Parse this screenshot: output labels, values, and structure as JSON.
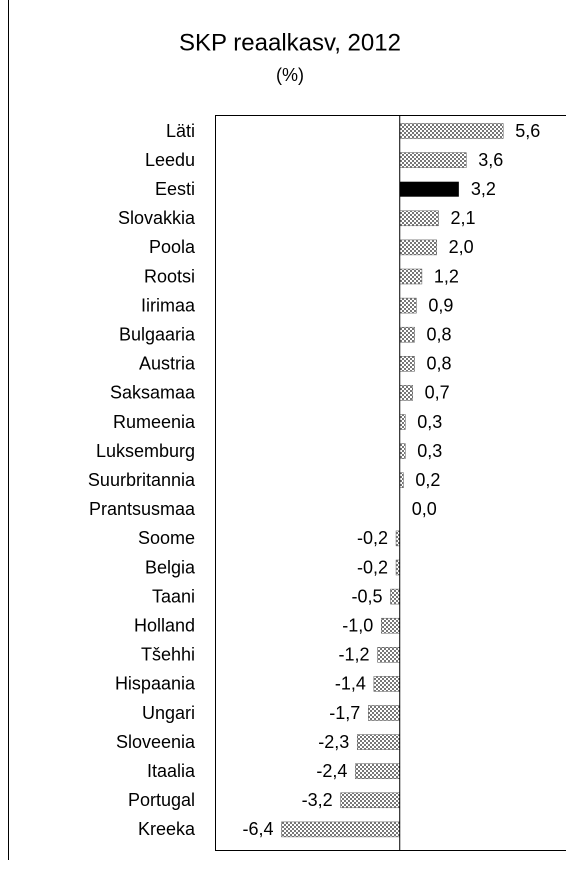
{
  "chart_data": {
    "type": "hbar",
    "title": "SKP reaalkasv, 2012",
    "subtitle": "(%)",
    "categories": [
      "Läti",
      "Leedu",
      "Eesti",
      "Slovakkia",
      "Poola",
      "Rootsi",
      "Iirimaa",
      "Bulgaaria",
      "Austria",
      "Saksamaa",
      "Rumeenia",
      "Luksemburg",
      "Suurbritannia",
      "Prantsusmaa",
      "Soome",
      "Belgia",
      "Taani",
      "Holland",
      "Tšehhi",
      "Hispaania",
      "Ungari",
      "Sloveenia",
      "Itaalia",
      "Portugal",
      "Kreeka"
    ],
    "values": [
      5.6,
      3.6,
      3.2,
      2.1,
      2.0,
      1.2,
      0.9,
      0.8,
      0.8,
      0.7,
      0.3,
      0.3,
      0.2,
      0.0,
      -0.2,
      -0.2,
      -0.5,
      -1.0,
      -1.2,
      -1.4,
      -1.7,
      -2.3,
      -2.4,
      -3.2,
      -6.4
    ],
    "value_labels": [
      "5,6",
      "3,6",
      "3,2",
      "2,1",
      "2,0",
      "1,2",
      "0,9",
      "0,8",
      "0,8",
      "0,7",
      "0,3",
      "0,3",
      "0,2",
      "0,0",
      "-0,2",
      "-0,2",
      "-0,5",
      "-1,0",
      "-1,2",
      "-1,4",
      "-1,7",
      "-2,3",
      "-2,4",
      "-3,2",
      "-6,4"
    ],
    "colors": [
      "#777777",
      "#777777",
      "#000000",
      "#777777",
      "#777777",
      "#777777",
      "#777777",
      "#777777",
      "#777777",
      "#777777",
      "#777777",
      "#777777",
      "#777777",
      "#777777",
      "#777777",
      "#777777",
      "#777777",
      "#777777",
      "#777777",
      "#777777",
      "#777777",
      "#777777",
      "#777777",
      "#777777",
      "#777777"
    ],
    "pattern": "checkered",
    "xlim": [
      -10,
      9
    ]
  }
}
